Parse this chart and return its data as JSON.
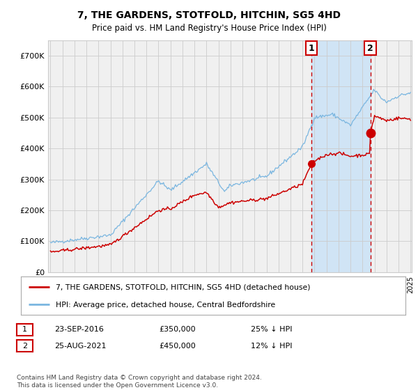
{
  "title": "7, THE GARDENS, STOTFOLD, HITCHIN, SG5 4HD",
  "subtitle": "Price paid vs. HM Land Registry's House Price Index (HPI)",
  "legend_line1": "7, THE GARDENS, STOTFOLD, HITCHIN, SG5 4HD (detached house)",
  "legend_line2": "HPI: Average price, detached house, Central Bedfordshire",
  "transaction1_date": "23-SEP-2016",
  "transaction1_price": 350000,
  "transaction1_label": "25% ↓ HPI",
  "transaction2_date": "25-AUG-2021",
  "transaction2_price": 450000,
  "transaction2_label": "12% ↓ HPI",
  "footer": "Contains HM Land Registry data © Crown copyright and database right 2024.\nThis data is licensed under the Open Government Licence v3.0.",
  "hpi_color": "#7ab6e0",
  "price_color": "#cc0000",
  "bg_color": "#ffffff",
  "plot_bg_color": "#f0f0f0",
  "highlight_bg": "#d0e4f5",
  "dashed_line_color": "#cc0000",
  "ylim": [
    0,
    750000
  ],
  "yticks": [
    0,
    100000,
    200000,
    300000,
    400000,
    500000,
    600000,
    700000
  ],
  "ytick_labels": [
    "£0",
    "£100K",
    "£200K",
    "£300K",
    "£400K",
    "£500K",
    "£600K",
    "£700K"
  ],
  "year_start": 1995,
  "year_end": 2025,
  "transaction1_year": 2016.73,
  "transaction2_year": 2021.65
}
